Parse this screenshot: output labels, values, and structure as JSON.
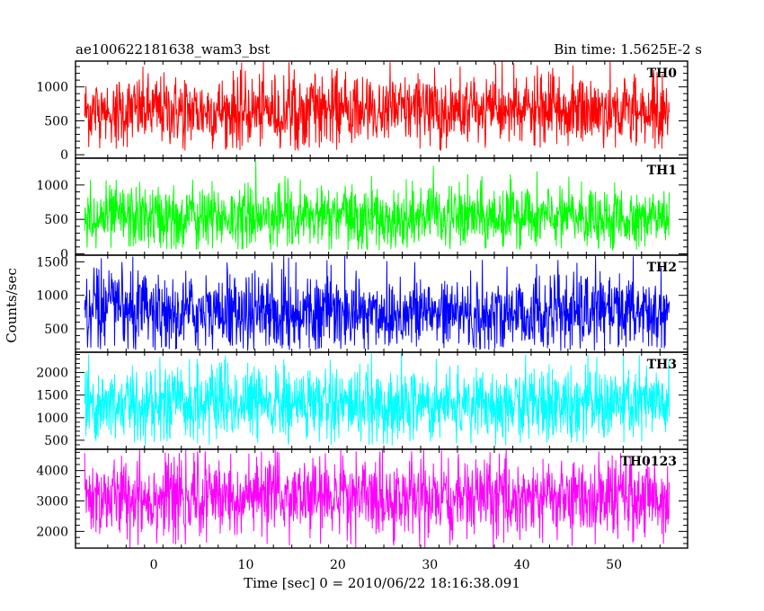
{
  "chart_data": {
    "type": "line",
    "title": "ae100622181638_wam3_bst",
    "subtitle": "Bin time: 1.5625E-2 s",
    "xlabel": "Time [sec] 0 = 2010/06/22 18:16:38.091",
    "ylabel": "Counts/sec",
    "xlim": [
      -8.5,
      58
    ],
    "data_range": [
      -7.5,
      56
    ],
    "xticks": [
      0,
      10,
      20,
      30,
      40,
      50
    ],
    "grid": false,
    "panels": [
      {
        "name": "TH0",
        "color": "#ff0000",
        "ylim": [
          -50,
          1380
        ],
        "yticks": [
          0,
          500,
          1000
        ],
        "mean": 650,
        "spread": 260,
        "min": 60,
        "max": 1380
      },
      {
        "name": "TH1",
        "color": "#00ff00",
        "ylim": [
          -20,
          1390
        ],
        "yticks": [
          0,
          500,
          1000
        ],
        "mean": 530,
        "spread": 230,
        "min": 50,
        "max": 1390
      },
      {
        "name": "TH2",
        "color": "#0000ff",
        "ylim": [
          150,
          1600
        ],
        "yticks": [
          500,
          1000,
          1500
        ],
        "mean": 740,
        "spread": 300,
        "min": 170,
        "max": 1600
      },
      {
        "name": "TH3",
        "color": "#00ffff",
        "ylim": [
          300,
          2450
        ],
        "yticks": [
          500,
          1000,
          1500,
          2000
        ],
        "mean": 1300,
        "spread": 420,
        "min": 380,
        "max": 2450
      },
      {
        "name": "TH0123",
        "color": "#ff00ff",
        "ylim": [
          1450,
          4700
        ],
        "yticks": [
          2000,
          3000,
          4000
        ],
        "mean": 3100,
        "spread": 650,
        "min": 1450,
        "max": 4700
      }
    ]
  }
}
